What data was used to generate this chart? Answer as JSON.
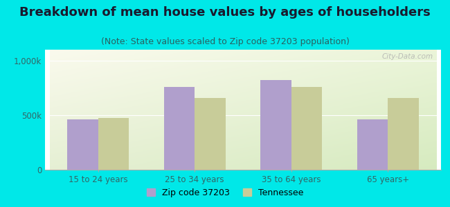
{
  "title": "Breakdown of mean house values by ages of householders",
  "subtitle": "(Note: State values scaled to Zip code 37203 population)",
  "categories": [
    "15 to 24 years",
    "25 to 34 years",
    "35 to 64 years",
    "65 years+"
  ],
  "zip_values": [
    460000,
    760000,
    820000,
    460000
  ],
  "state_values": [
    475000,
    660000,
    760000,
    660000
  ],
  "zip_color": "#b09fcc",
  "state_color": "#c8cc99",
  "background_outer": "#00e8e8",
  "ylim": [
    0,
    1100000
  ],
  "ytick_labels": [
    "0",
    "500k",
    "1,000k"
  ],
  "legend_zip": "Zip code 37203",
  "legend_state": "Tennessee",
  "watermark": "City-Data.com",
  "bar_width": 0.32,
  "title_fontsize": 13,
  "subtitle_fontsize": 9,
  "tick_fontsize": 8.5,
  "legend_fontsize": 9,
  "title_color": "#1a1a2e",
  "subtitle_color": "#2a6060",
  "tick_color": "#336666"
}
